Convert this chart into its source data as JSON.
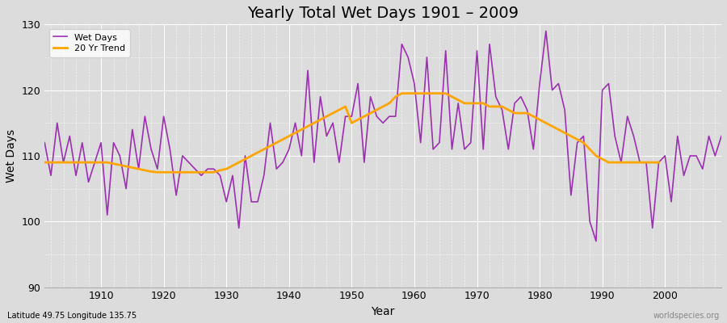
{
  "title": "Yearly Total Wet Days 1901 – 2009",
  "xlabel": "Year",
  "ylabel": "Wet Days",
  "ylim": [
    90,
    130
  ],
  "xlim": [
    1901,
    2009
  ],
  "yticks": [
    90,
    100,
    110,
    120,
    130
  ],
  "xticks": [
    1910,
    1920,
    1930,
    1940,
    1950,
    1960,
    1970,
    1980,
    1990,
    2000
  ],
  "bg_color": "#dcdcdc",
  "wet_days_color": "#9B30B0",
  "trend_color": "#FFA500",
  "legend_labels": [
    "Wet Days",
    "20 Yr Trend"
  ],
  "footnote_left": "Latitude 49.75 Longitude 135.75",
  "footnote_right": "worldspecies.org",
  "wet_days": {
    "1901": 112,
    "1902": 107,
    "1903": 115,
    "1904": 109,
    "1905": 113,
    "1906": 107,
    "1907": 112,
    "1908": 106,
    "1909": 109,
    "1910": 112,
    "1911": 101,
    "1912": 112,
    "1913": 110,
    "1914": 105,
    "1915": 114,
    "1916": 108,
    "1917": 116,
    "1918": 111,
    "1919": 108,
    "1920": 116,
    "1921": 111,
    "1922": 104,
    "1923": 110,
    "1924": 109,
    "1925": 108,
    "1926": 107,
    "1927": 108,
    "1928": 108,
    "1929": 107,
    "1930": 103,
    "1931": 107,
    "1932": 99,
    "1933": 110,
    "1934": 103,
    "1935": 103,
    "1936": 107,
    "1937": 115,
    "1938": 108,
    "1939": 109,
    "1940": 111,
    "1941": 115,
    "1942": 110,
    "1943": 123,
    "1944": 109,
    "1945": 119,
    "1946": 113,
    "1947": 115,
    "1948": 109,
    "1949": 116,
    "1950": 116,
    "1951": 121,
    "1952": 109,
    "1953": 119,
    "1954": 116,
    "1955": 115,
    "1956": 116,
    "1957": 116,
    "1958": 127,
    "1959": 125,
    "1960": 121,
    "1961": 112,
    "1962": 125,
    "1963": 111,
    "1964": 112,
    "1965": 126,
    "1966": 111,
    "1967": 118,
    "1968": 111,
    "1969": 112,
    "1970": 126,
    "1971": 111,
    "1972": 127,
    "1973": 119,
    "1974": 117,
    "1975": 111,
    "1976": 118,
    "1977": 119,
    "1978": 117,
    "1979": 111,
    "1980": 121,
    "1981": 129,
    "1982": 120,
    "1983": 121,
    "1984": 117,
    "1985": 104,
    "1986": 112,
    "1987": 113,
    "1988": 100,
    "1989": 97,
    "1990": 120,
    "1991": 121,
    "1992": 113,
    "1993": 109,
    "1994": 116,
    "1995": 113,
    "1996": 109,
    "1997": 109,
    "1998": 99,
    "1999": 109,
    "2000": 110,
    "2001": 103,
    "2002": 113,
    "2003": 107,
    "2004": 110,
    "2005": 110,
    "2006": 108,
    "2007": 113,
    "2008": 110,
    "2009": 113
  },
  "trend": {
    "1901": 109.0,
    "1902": 109.0,
    "1903": 109.0,
    "1904": 109.0,
    "1905": 109.0,
    "1906": 109.0,
    "1907": 109.0,
    "1908": 109.0,
    "1909": 109.0,
    "1910": 109.0,
    "1911": 109.0,
    "1912": 108.8,
    "1913": 108.6,
    "1914": 108.4,
    "1915": 108.2,
    "1916": 108.0,
    "1917": 107.8,
    "1918": 107.6,
    "1919": 107.5,
    "1920": 107.5,
    "1921": 107.5,
    "1922": 107.5,
    "1923": 107.5,
    "1924": 107.5,
    "1925": 107.5,
    "1926": 107.5,
    "1927": 107.5,
    "1928": 107.5,
    "1929": 107.8,
    "1930": 108.0,
    "1931": 108.5,
    "1932": 109.0,
    "1933": 109.5,
    "1934": 110.0,
    "1935": 110.5,
    "1936": 111.0,
    "1937": 111.5,
    "1938": 112.0,
    "1939": 112.5,
    "1940": 113.0,
    "1941": 113.5,
    "1942": 114.0,
    "1943": 114.5,
    "1944": 115.0,
    "1945": 115.5,
    "1946": 116.0,
    "1947": 116.5,
    "1948": 117.0,
    "1949": 117.5,
    "1950": 115.0,
    "1951": 115.5,
    "1952": 116.0,
    "1953": 116.5,
    "1954": 117.0,
    "1955": 117.5,
    "1956": 118.0,
    "1957": 119.0,
    "1958": 119.5,
    "1959": 119.5,
    "1960": 119.5,
    "1961": 119.5,
    "1962": 119.5,
    "1963": 119.5,
    "1964": 119.5,
    "1965": 119.5,
    "1966": 119.0,
    "1967": 118.5,
    "1968": 118.0,
    "1969": 118.0,
    "1970": 118.0,
    "1971": 118.0,
    "1972": 117.5,
    "1973": 117.5,
    "1974": 117.5,
    "1975": 117.0,
    "1976": 116.5,
    "1977": 116.5,
    "1978": 116.5,
    "1979": 116.0,
    "1980": 115.5,
    "1981": 115.0,
    "1982": 114.5,
    "1983": 114.0,
    "1984": 113.5,
    "1985": 113.0,
    "1986": 112.5,
    "1987": 112.0,
    "1988": 111.0,
    "1989": 110.0,
    "1990": 109.5,
    "1991": 109.0,
    "1992": 109.0,
    "1993": 109.0,
    "1994": 109.0,
    "1995": 109.0,
    "1996": 109.0,
    "1997": 109.0,
    "1998": 109.0,
    "1999": 109.0
  }
}
